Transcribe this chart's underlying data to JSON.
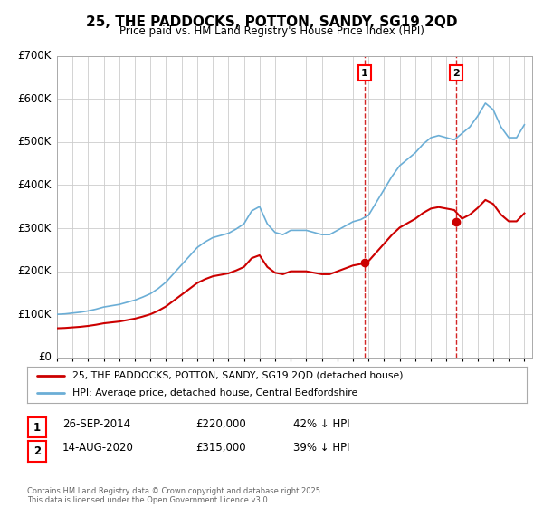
{
  "title": "25, THE PADDOCKS, POTTON, SANDY, SG19 2QD",
  "subtitle": "Price paid vs. HM Land Registry's House Price Index (HPI)",
  "ylim": [
    0,
    700000
  ],
  "yticks": [
    0,
    100000,
    200000,
    300000,
    400000,
    500000,
    600000,
    700000
  ],
  "ytick_labels": [
    "£0",
    "£100K",
    "£200K",
    "£300K",
    "£400K",
    "£500K",
    "£600K",
    "£700K"
  ],
  "xlim_start": 1995.0,
  "xlim_end": 2025.5,
  "hpi_color": "#6baed6",
  "price_color": "#cc0000",
  "marker1_date": 2014.74,
  "marker1_price": 220000,
  "marker2_date": 2020.62,
  "marker2_price": 315000,
  "legend_label1": "25, THE PADDOCKS, POTTON, SANDY, SG19 2QD (detached house)",
  "legend_label2": "HPI: Average price, detached house, Central Bedfordshire",
  "table_row1": [
    "1",
    "26-SEP-2014",
    "£220,000",
    "42% ↓ HPI"
  ],
  "table_row2": [
    "2",
    "14-AUG-2020",
    "£315,000",
    "39% ↓ HPI"
  ],
  "footer": "Contains HM Land Registry data © Crown copyright and database right 2025.\nThis data is licensed under the Open Government Licence v3.0.",
  "background_color": "#ffffff",
  "grid_color": "#cccccc",
  "hpi_years": [
    1995.0,
    1995.5,
    1996.0,
    1996.5,
    1997.0,
    1997.5,
    1998.0,
    1998.5,
    1999.0,
    1999.5,
    2000.0,
    2000.5,
    2001.0,
    2001.5,
    2002.0,
    2002.5,
    2003.0,
    2003.5,
    2004.0,
    2004.5,
    2005.0,
    2005.5,
    2006.0,
    2006.5,
    2007.0,
    2007.5,
    2008.0,
    2008.5,
    2009.0,
    2009.5,
    2010.0,
    2010.5,
    2011.0,
    2011.5,
    2012.0,
    2012.5,
    2013.0,
    2013.5,
    2014.0,
    2014.5,
    2015.0,
    2015.5,
    2016.0,
    2016.5,
    2017.0,
    2017.5,
    2018.0,
    2018.5,
    2019.0,
    2019.5,
    2020.0,
    2020.5,
    2021.0,
    2021.5,
    2022.0,
    2022.5,
    2023.0,
    2023.5,
    2024.0,
    2024.5,
    2025.0
  ],
  "hpi_values": [
    100000,
    101000,
    103000,
    105000,
    108000,
    112000,
    117000,
    120000,
    123000,
    128000,
    133000,
    140000,
    148000,
    160000,
    175000,
    195000,
    215000,
    235000,
    255000,
    268000,
    278000,
    283000,
    288000,
    298000,
    310000,
    340000,
    350000,
    310000,
    290000,
    285000,
    295000,
    295000,
    295000,
    290000,
    285000,
    285000,
    295000,
    305000,
    315000,
    320000,
    330000,
    360000,
    390000,
    420000,
    445000,
    460000,
    475000,
    495000,
    510000,
    515000,
    510000,
    505000,
    520000,
    535000,
    560000,
    590000,
    575000,
    535000,
    510000,
    510000,
    540000
  ]
}
